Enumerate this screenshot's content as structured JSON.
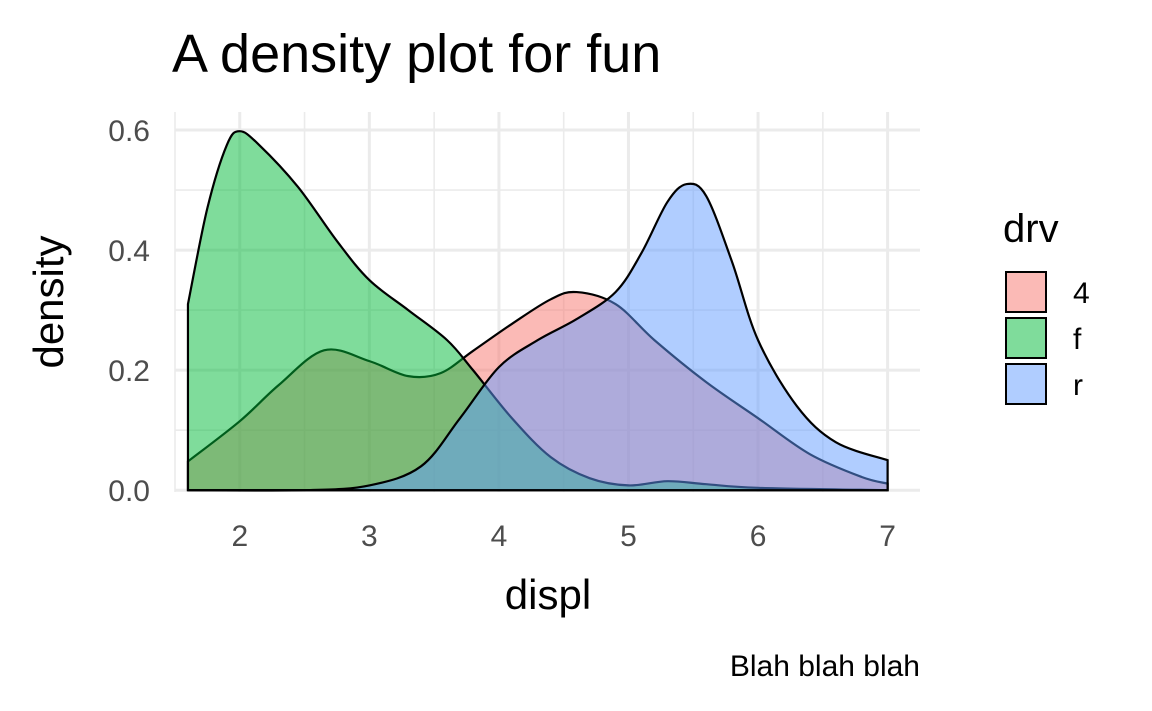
{
  "chart_data": {
    "type": "area",
    "title": "A density plot for fun",
    "xlabel": "displ",
    "ylabel": "density",
    "caption": "Blah blah blah",
    "xlim": [
      1.5,
      7.25
    ],
    "ylim": [
      -0.003,
      0.63
    ],
    "x_ticks": [
      2,
      3,
      4,
      5,
      6,
      7
    ],
    "y_ticks": [
      0.0,
      0.2,
      0.4,
      0.6
    ],
    "x_tick_labels": [
      "2",
      "3",
      "4",
      "5",
      "6",
      "7"
    ],
    "y_tick_labels": [
      "0.0",
      "0.2",
      "0.4",
      "0.6"
    ],
    "grid": true,
    "legend": {
      "title": "drv",
      "position": "right",
      "entries": [
        "4",
        "f",
        "r"
      ]
    },
    "series": [
      {
        "name": "4",
        "color": "#F8766D",
        "points": [
          [
            1.6,
            0.048
          ],
          [
            2.0,
            0.115
          ],
          [
            2.3,
            0.175
          ],
          [
            2.65,
            0.233
          ],
          [
            3.0,
            0.215
          ],
          [
            3.3,
            0.19
          ],
          [
            3.55,
            0.195
          ],
          [
            3.8,
            0.232
          ],
          [
            4.1,
            0.277
          ],
          [
            4.4,
            0.318
          ],
          [
            4.6,
            0.33
          ],
          [
            4.9,
            0.31
          ],
          [
            5.2,
            0.25
          ],
          [
            5.6,
            0.18
          ],
          [
            6.0,
            0.12
          ],
          [
            6.4,
            0.06
          ],
          [
            6.8,
            0.022
          ],
          [
            7.0,
            0.011
          ]
        ]
      },
      {
        "name": "f",
        "color": "#00BA38",
        "points": [
          [
            1.6,
            0.31
          ],
          [
            1.75,
            0.47
          ],
          [
            1.9,
            0.575
          ],
          [
            2.0,
            0.598
          ],
          [
            2.15,
            0.575
          ],
          [
            2.45,
            0.505
          ],
          [
            2.75,
            0.415
          ],
          [
            3.0,
            0.35
          ],
          [
            3.3,
            0.3
          ],
          [
            3.6,
            0.25
          ],
          [
            3.8,
            0.2
          ],
          [
            4.1,
            0.12
          ],
          [
            4.4,
            0.055
          ],
          [
            4.7,
            0.02
          ],
          [
            5.0,
            0.008
          ],
          [
            5.3,
            0.015
          ],
          [
            5.6,
            0.01
          ],
          [
            6.0,
            0.004
          ],
          [
            7.0,
            0.0
          ]
        ]
      },
      {
        "name": "r",
        "color": "#619CFF",
        "points": [
          [
            1.6,
            0.0
          ],
          [
            2.5,
            0.0
          ],
          [
            3.0,
            0.008
          ],
          [
            3.4,
            0.04
          ],
          [
            3.7,
            0.12
          ],
          [
            4.0,
            0.205
          ],
          [
            4.3,
            0.25
          ],
          [
            4.6,
            0.285
          ],
          [
            4.9,
            0.33
          ],
          [
            5.1,
            0.395
          ],
          [
            5.3,
            0.48
          ],
          [
            5.45,
            0.51
          ],
          [
            5.6,
            0.49
          ],
          [
            5.8,
            0.38
          ],
          [
            6.0,
            0.25
          ],
          [
            6.3,
            0.14
          ],
          [
            6.6,
            0.08
          ],
          [
            7.0,
            0.05
          ]
        ]
      }
    ]
  }
}
